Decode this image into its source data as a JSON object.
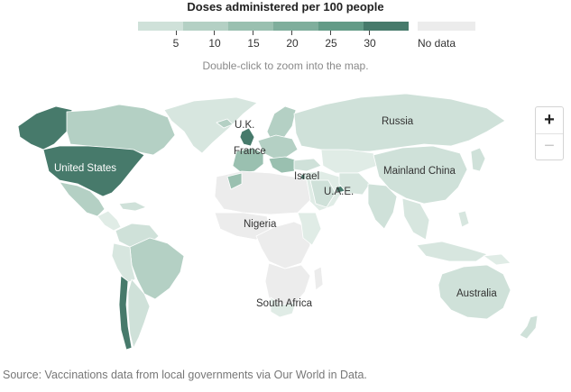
{
  "legend": {
    "title": "Doses administered per 100 people",
    "ticks": [
      "5",
      "10",
      "15",
      "20",
      "25",
      "30"
    ],
    "nodata": "No data",
    "colors": [
      "#cfe1d9",
      "#b4d0c4",
      "#9ac0b0",
      "#7fae9c",
      "#639b87",
      "#477a6b"
    ],
    "nodata_color": "#ececec"
  },
  "hint": "Double-click to zoom into the map.",
  "map_labels": {
    "uk": "U.K.",
    "france": "France",
    "russia": "Russia",
    "usa": "United States",
    "israel": "Israel",
    "uae": "U.A.E.",
    "china": "Mainland China",
    "nigeria": "Nigeria",
    "south_africa": "South Africa",
    "australia": "Australia"
  },
  "zoom": {
    "in": "+",
    "out": "−"
  },
  "source": "Source: Vaccinations data from local governments via Our World in Data."
}
